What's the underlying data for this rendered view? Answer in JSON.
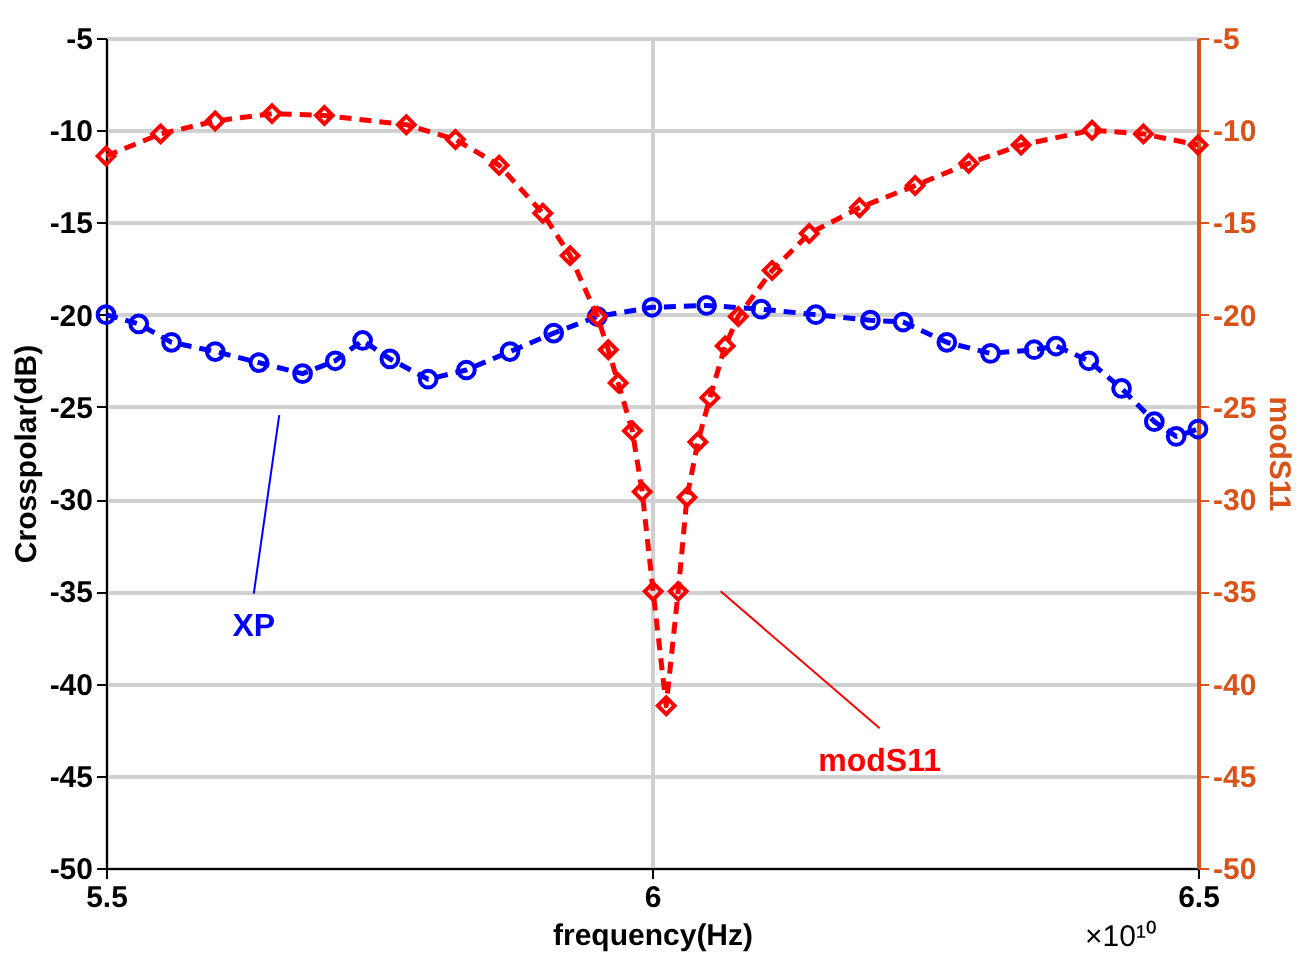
{
  "chart_data": {
    "type": "line",
    "xlabel": "frequency(Hz)",
    "ylabel": "Crosspolar(dB)",
    "y2label": "modS11",
    "xlim": [
      5.5,
      6.5
    ],
    "xticks": [
      5.5,
      6,
      6.5
    ],
    "ylim": [
      -50,
      -5
    ],
    "yticks": [
      -50,
      -45,
      -40,
      -35,
      -30,
      -25,
      -20,
      -15,
      -10,
      -5
    ],
    "y2lim": [
      -50,
      -5
    ],
    "y2ticks": [
      -50,
      -45,
      -40,
      -35,
      -30,
      -25,
      -20,
      -15,
      -10,
      -5
    ],
    "grid": true,
    "legend": false,
    "series": [
      {
        "name": "XP",
        "color": "#0000ff",
        "marker": "circle",
        "line_style": "dashed",
        "x": [
          5.5,
          5.53,
          5.56,
          5.6,
          5.64,
          5.68,
          5.71,
          5.735,
          5.76,
          5.795,
          5.83,
          5.87,
          5.91,
          5.95,
          6.0,
          6.05,
          6.1,
          6.15,
          6.2,
          6.23,
          6.27,
          6.31,
          6.35,
          6.37,
          6.4,
          6.43,
          6.46,
          6.48,
          6.5
        ],
        "values": [
          -20.0,
          -20.5,
          -21.5,
          -22.0,
          -22.6,
          -23.2,
          -22.5,
          -21.4,
          -22.4,
          -23.5,
          -23.0,
          -22.0,
          -21.0,
          -20.1,
          -19.6,
          -19.5,
          -19.7,
          -20.0,
          -20.3,
          -20.4,
          -21.5,
          -22.1,
          -21.9,
          -21.7,
          -22.5,
          -24.0,
          -25.8,
          -26.6,
          -26.2
        ]
      },
      {
        "name": "modS11",
        "color": "#ff0000",
        "marker": "diamond",
        "line_style": "dashed",
        "axis": "y2",
        "x": [
          5.5,
          5.55,
          5.6,
          5.652,
          5.7,
          5.775,
          5.82,
          5.86,
          5.9,
          5.925,
          5.95,
          5.96,
          5.969,
          5.982,
          5.991,
          6.001,
          6.013,
          6.024,
          6.032,
          6.042,
          6.053,
          6.067,
          6.079,
          6.11,
          6.144,
          6.19,
          6.241,
          6.29,
          6.338,
          6.403,
          6.45,
          6.5
        ],
        "values": [
          -11.4,
          -10.2,
          -9.5,
          -9.1,
          -9.2,
          -9.7,
          -10.5,
          -11.9,
          -14.5,
          -16.8,
          -20.1,
          -21.9,
          -23.7,
          -26.3,
          -29.6,
          -35.0,
          -41.2,
          -35.0,
          -29.9,
          -26.9,
          -24.5,
          -21.7,
          -20.1,
          -17.6,
          -15.6,
          -14.2,
          -13.0,
          -11.8,
          -10.8,
          -10.0,
          -10.2,
          -10.8
        ]
      }
    ],
    "annotations": [
      "×10¹⁰"
    ]
  }
}
